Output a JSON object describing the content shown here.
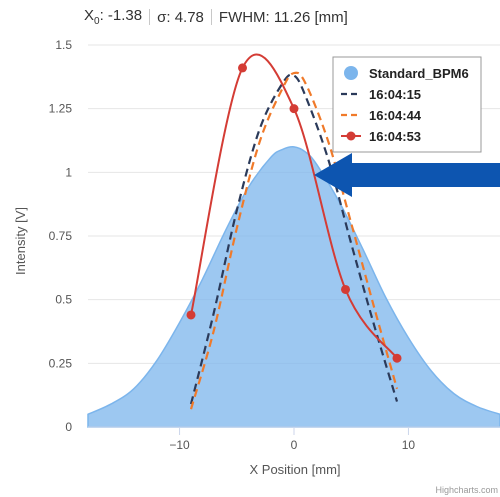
{
  "stats": {
    "x0_symbol": "X",
    "x0_sub": "0",
    "x0_value": ": -1.38",
    "sigma": "σ: 4.78",
    "fwhm": "FWHM: 11.26 [mm]"
  },
  "credits": "Highcharts.com",
  "arrow_color": "#0d55b0",
  "chart_data": {
    "type": "area",
    "xlabel": "X Position [mm]",
    "ylabel": "Intensity [V]",
    "xlim": [
      -18,
      18
    ],
    "ylim": [
      0,
      1.5
    ],
    "x_ticks": [
      -10,
      0,
      10
    ],
    "y_ticks": [
      0,
      0.25,
      0.5,
      0.75,
      1,
      1.25,
      1.5
    ],
    "y_tick_labels": [
      "0",
      "0.25",
      "0.5",
      "0.75",
      "1",
      "1.25",
      "1.5"
    ],
    "grid": "horizontal",
    "legend_position": "top-right",
    "series": [
      {
        "name": "Standard_BPM6",
        "kind": "area",
        "color": "#7cb5ec",
        "x": [
          -18,
          -16,
          -14,
          -12,
          -10,
          -8,
          -6,
          -4,
          -2,
          -1,
          0,
          1,
          2,
          4,
          6,
          8,
          10,
          12,
          14,
          16,
          18
        ],
        "y": [
          0.05,
          0.09,
          0.15,
          0.26,
          0.41,
          0.58,
          0.77,
          0.94,
          1.06,
          1.09,
          1.1,
          1.08,
          1.03,
          0.88,
          0.7,
          0.51,
          0.35,
          0.22,
          0.13,
          0.08,
          0.05
        ]
      },
      {
        "name": "16:04:15",
        "kind": "dash",
        "color": "#2b3a5a",
        "x": [
          -9,
          -7,
          -5,
          -3,
          -1,
          0,
          1,
          3,
          5,
          7,
          9
        ],
        "y": [
          0.09,
          0.45,
          0.85,
          1.17,
          1.35,
          1.38,
          1.3,
          1.05,
          0.72,
          0.4,
          0.1
        ]
      },
      {
        "name": "16:04:44",
        "kind": "dash",
        "color": "#f07a2a",
        "x": [
          -9,
          -7,
          -5,
          -3,
          -1,
          0,
          1,
          3,
          5,
          7,
          9
        ],
        "y": [
          0.07,
          0.38,
          0.78,
          1.12,
          1.33,
          1.39,
          1.35,
          1.12,
          0.8,
          0.47,
          0.15
        ]
      },
      {
        "name": "16:04:53",
        "kind": "line-marker",
        "color": "#d43c35",
        "x": [
          -9,
          -4.5,
          0,
          4.5,
          9
        ],
        "y": [
          0.44,
          1.41,
          1.25,
          0.54,
          0.27
        ]
      }
    ]
  }
}
